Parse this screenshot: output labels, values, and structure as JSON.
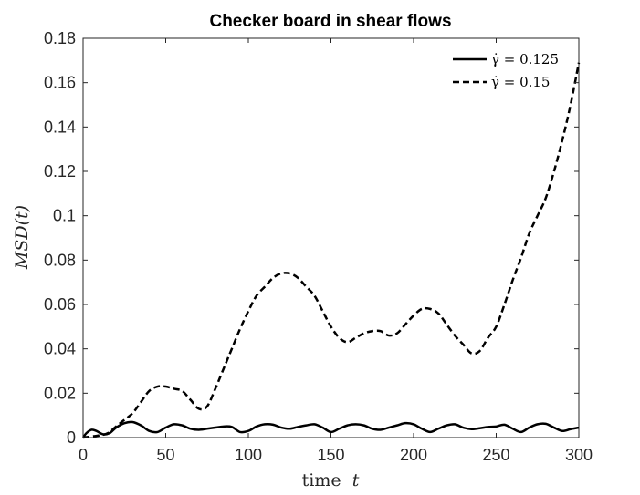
{
  "chart_data": {
    "type": "line",
    "title": "Checker board in shear flows",
    "xlabel_text": "time",
    "xlabel_var": "t",
    "ylabel": "MSD(t)",
    "xlim": [
      0,
      300
    ],
    "ylim": [
      0,
      0.18
    ],
    "xticks": [
      0,
      50,
      100,
      150,
      200,
      250,
      300
    ],
    "xtick_labels": [
      "0",
      "50",
      "100",
      "150",
      "200",
      "250",
      "300"
    ],
    "yticks": [
      0,
      0.02,
      0.04,
      0.06,
      0.08,
      0.1,
      0.12,
      0.14,
      0.16,
      0.18
    ],
    "ytick_labels": [
      "0",
      "0.02",
      "0.04",
      "0.06",
      "0.08",
      "0.1",
      "0.12",
      "0.14",
      "0.16",
      "0.18"
    ],
    "grid": false,
    "legend_position": "top-right",
    "series": [
      {
        "name": "γ̇ = 0.125",
        "style": "solid",
        "color": "#000000",
        "x": [
          0,
          2,
          5,
          8,
          12,
          16,
          20,
          25,
          30,
          35,
          40,
          45,
          50,
          55,
          60,
          65,
          70,
          75,
          80,
          85,
          90,
          95,
          100,
          105,
          110,
          115,
          120,
          125,
          130,
          135,
          140,
          145,
          150,
          155,
          160,
          165,
          170,
          175,
          180,
          185,
          190,
          195,
          200,
          205,
          210,
          215,
          220,
          225,
          230,
          235,
          240,
          245,
          250,
          255,
          260,
          265,
          270,
          275,
          280,
          285,
          290,
          295,
          300
        ],
        "y": [
          0,
          0.002,
          0.0035,
          0.003,
          0.0015,
          0.002,
          0.0045,
          0.0065,
          0.007,
          0.0055,
          0.003,
          0.0025,
          0.0045,
          0.006,
          0.0055,
          0.004,
          0.0035,
          0.004,
          0.0045,
          0.005,
          0.0048,
          0.0025,
          0.003,
          0.005,
          0.006,
          0.0058,
          0.0045,
          0.004,
          0.0048,
          0.0055,
          0.006,
          0.0045,
          0.0025,
          0.004,
          0.0055,
          0.006,
          0.0055,
          0.004,
          0.0035,
          0.0045,
          0.0055,
          0.0065,
          0.006,
          0.004,
          0.0025,
          0.004,
          0.0055,
          0.006,
          0.0045,
          0.0038,
          0.0042,
          0.0048,
          0.005,
          0.0058,
          0.004,
          0.0025,
          0.0045,
          0.006,
          0.0062,
          0.0045,
          0.003,
          0.0038,
          0.0045
        ]
      },
      {
        "name": "γ̇ = 0.15",
        "style": "dashed",
        "color": "#000000",
        "x": [
          0,
          5,
          10,
          15,
          20,
          25,
          30,
          35,
          40,
          45,
          50,
          55,
          60,
          65,
          70,
          75,
          80,
          85,
          90,
          95,
          100,
          105,
          110,
          115,
          120,
          125,
          130,
          135,
          140,
          145,
          150,
          155,
          160,
          165,
          170,
          175,
          180,
          185,
          190,
          195,
          200,
          205,
          210,
          215,
          220,
          225,
          230,
          235,
          240,
          245,
          250,
          255,
          260,
          265,
          270,
          275,
          280,
          285,
          290,
          295,
          300
        ],
        "y": [
          0,
          0.0005,
          0.001,
          0.002,
          0.005,
          0.008,
          0.011,
          0.016,
          0.021,
          0.023,
          0.023,
          0.022,
          0.021,
          0.017,
          0.013,
          0.014,
          0.022,
          0.031,
          0.04,
          0.049,
          0.057,
          0.064,
          0.068,
          0.072,
          0.074,
          0.074,
          0.072,
          0.068,
          0.064,
          0.057,
          0.05,
          0.045,
          0.043,
          0.045,
          0.047,
          0.048,
          0.048,
          0.046,
          0.047,
          0.051,
          0.055,
          0.058,
          0.058,
          0.056,
          0.051,
          0.046,
          0.042,
          0.038,
          0.039,
          0.045,
          0.05,
          0.06,
          0.071,
          0.081,
          0.092,
          0.1,
          0.108,
          0.12,
          0.134,
          0.15,
          0.169
        ]
      }
    ]
  }
}
